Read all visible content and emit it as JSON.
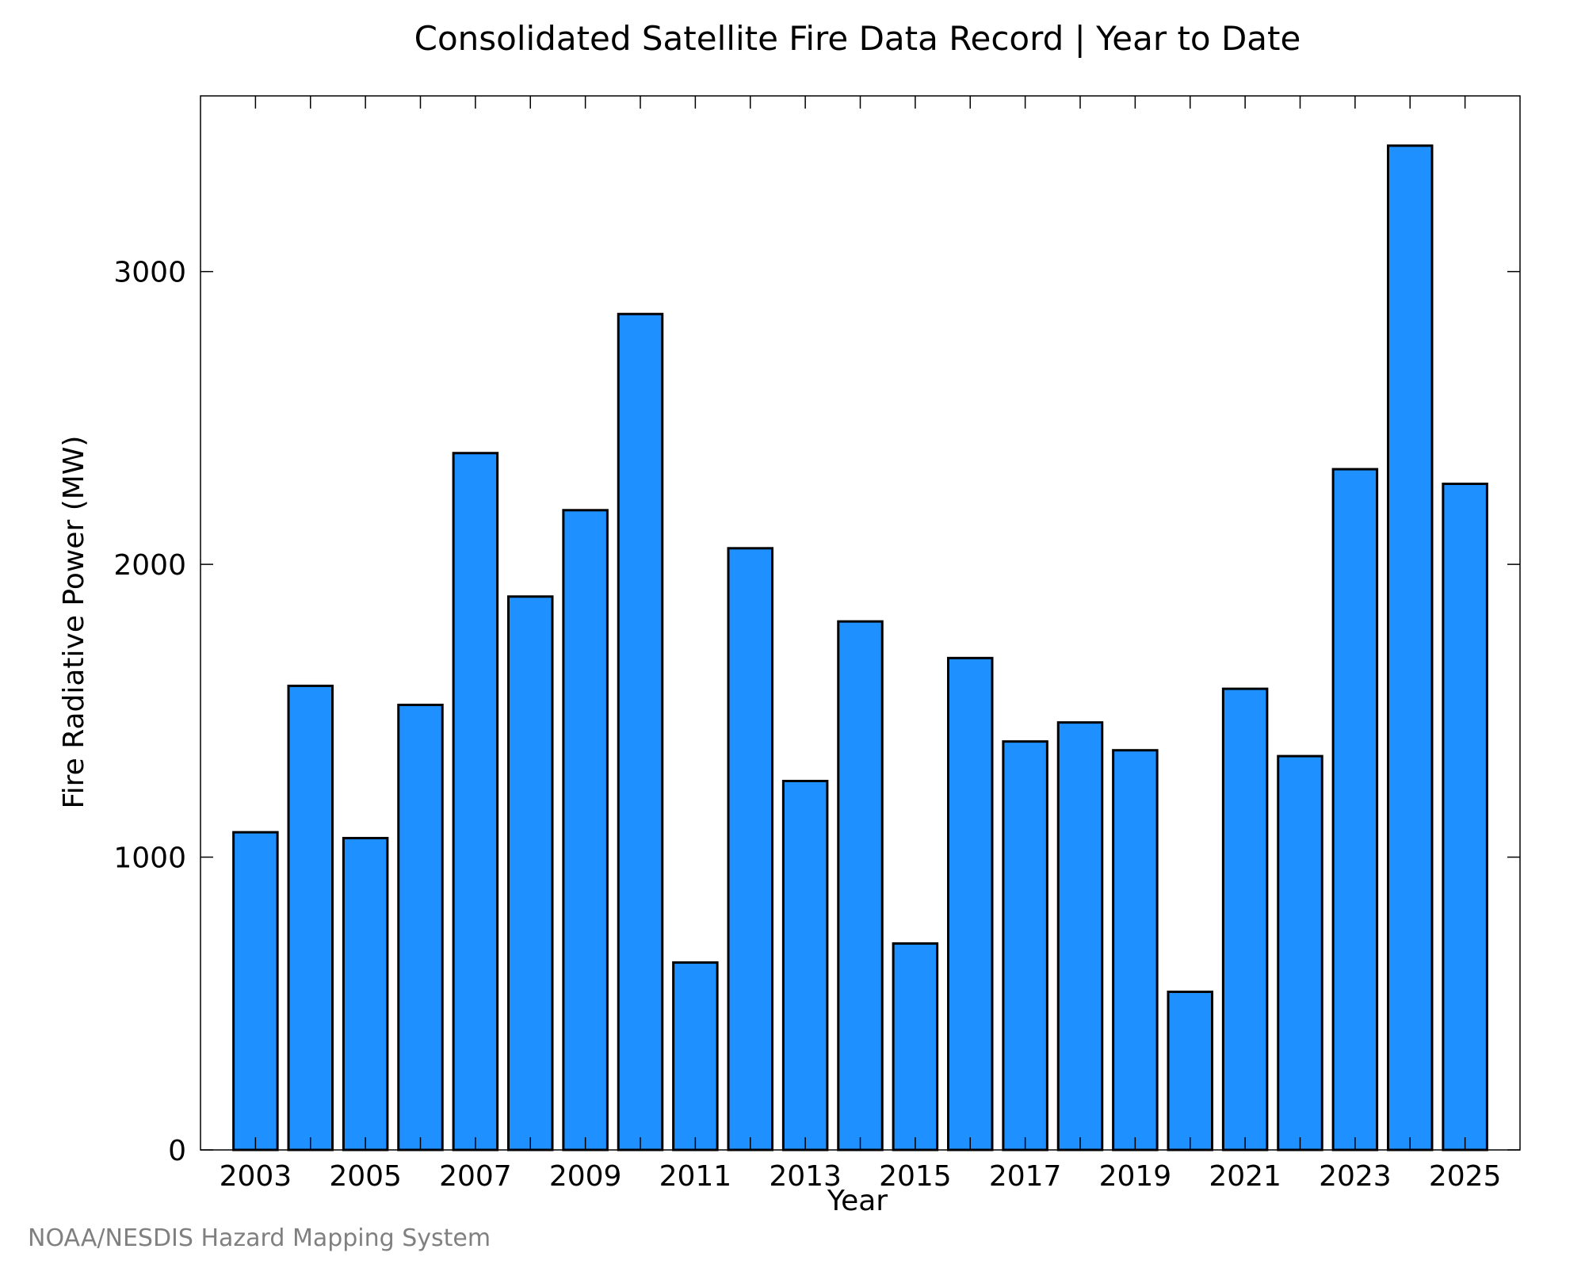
{
  "chart_data": {
    "type": "bar",
    "title": "Consolidated Satellite Fire Data Record | Year to Date",
    "xlabel": "Year",
    "ylabel": "Fire Radiative Power (MW)",
    "categories": [
      "2003",
      "2004",
      "2005",
      "2006",
      "2007",
      "2008",
      "2009",
      "2010",
      "2011",
      "2012",
      "2013",
      "2014",
      "2015",
      "2016",
      "2017",
      "2018",
      "2019",
      "2020",
      "2021",
      "2022",
      "2023",
      "2024",
      "2025"
    ],
    "values": [
      1085,
      1585,
      1065,
      1520,
      2380,
      1890,
      2185,
      2855,
      640,
      2055,
      1260,
      1805,
      705,
      1680,
      1395,
      1460,
      1365,
      540,
      1575,
      1345,
      2325,
      3430,
      2275
    ],
    "xtick_labels": [
      "2003",
      "2005",
      "2007",
      "2009",
      "2011",
      "2013",
      "2015",
      "2017",
      "2019",
      "2021",
      "2023",
      "2025"
    ],
    "yticks": [
      0,
      1000,
      2000,
      3000
    ],
    "ylim": [
      0,
      3600
    ],
    "bar_color": "#1E90FF",
    "edge_color": "#000000",
    "grid": false
  },
  "credit": "NOAA/NESDIS Hazard Mapping System"
}
